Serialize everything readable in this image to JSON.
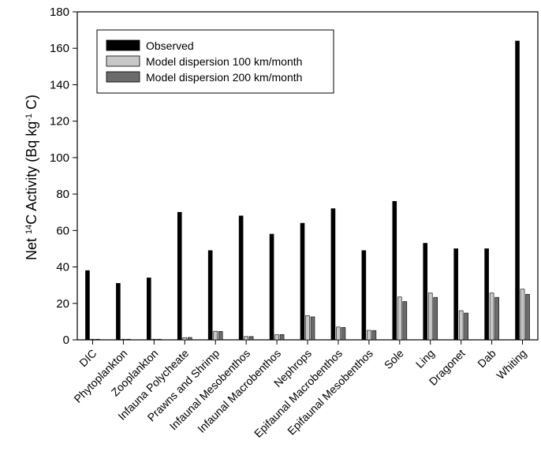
{
  "chart_data": {
    "type": "bar",
    "ylabel_parts": {
      "prefix": "Net ",
      "sup1": "14",
      "middle": "C Activity (Bq kg",
      "sup2": "-1",
      "suffix": " C)"
    },
    "ylim": [
      0,
      180
    ],
    "yticks": [
      0,
      20,
      40,
      60,
      80,
      100,
      120,
      140,
      160,
      180
    ],
    "grid": false,
    "legend_position": "top-left",
    "categories": [
      "DIC",
      "Phytoplankton",
      "Zooplankton",
      "Infauna Polycheate",
      "Prawns and Shrimp",
      "Infaunal Mesobenthos",
      "Infaunal Macrobenthos",
      "Nephrops",
      "Epifaunal Macrobenthos",
      "Epifaunal Mesobenthos",
      "Sole",
      "Ling",
      "Dragonet",
      "Dab",
      "Whiting"
    ],
    "series": [
      {
        "name": "Observed",
        "color": "#000000",
        "values": [
          38,
          31,
          34,
          70,
          49,
          68,
          58,
          64,
          72,
          49,
          76,
          53,
          50,
          50,
          164
        ]
      },
      {
        "name": "Model dispersion 100 km/month",
        "color": "#c8c8c8",
        "values": [
          0.3,
          0.1,
          0.2,
          1.2,
          4.7,
          1.8,
          2.8,
          13.3,
          7.0,
          5.2,
          23.5,
          25.7,
          16.0,
          25.7,
          27.8
        ]
      },
      {
        "name": "Model dispersion 200 km/month",
        "color": "#6b6b6b",
        "values": [
          0.3,
          0.1,
          0.2,
          1.3,
          4.6,
          1.8,
          2.9,
          12.6,
          6.8,
          5.1,
          21.0,
          23.3,
          14.7,
          23.3,
          25.0
        ]
      }
    ]
  }
}
